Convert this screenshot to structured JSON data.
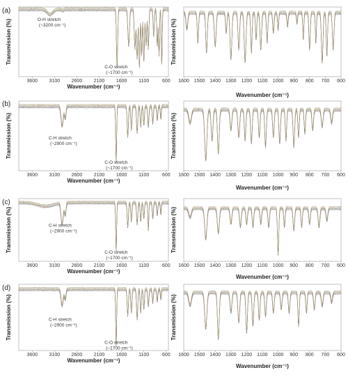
{
  "chart_data": [
    {
      "type": "line",
      "panel": "(a)",
      "side": "left",
      "xlabel": "Wavenumber (cm⁻¹)",
      "ylabel": "Transmission (%)",
      "xlim": [
        3900,
        550
      ],
      "ylim": [
        0,
        100
      ],
      "x_reversed": true,
      "xticks": [
        "3600",
        "3100",
        "2600",
        "2100",
        "1600",
        "1100",
        "600"
      ],
      "xtick_values": [
        3600,
        3100,
        2600,
        2100,
        1600,
        1100,
        600
      ],
      "annotations": [
        {
          "text1": "O-H stretch",
          "text2": "(~3200 cm⁻¹)",
          "x": 3200,
          "y": 80
        },
        {
          "text1": "C-O stretch",
          "text2": "(~1700 cm⁻¹)",
          "x": 1700,
          "y": 12
        }
      ],
      "baseline": 97,
      "features": [
        [
          3200,
          8,
          90
        ],
        [
          2920,
          2,
          30
        ],
        [
          1700,
          88,
          20
        ],
        [
          1440,
          55,
          25
        ],
        [
          1300,
          60,
          22
        ],
        [
          1250,
          75,
          20
        ],
        [
          1200,
          88,
          18
        ],
        [
          1150,
          70,
          18
        ],
        [
          1100,
          80,
          18
        ],
        [
          1050,
          55,
          20
        ],
        [
          1000,
          60,
          18
        ],
        [
          880,
          40,
          18
        ],
        [
          800,
          55,
          18
        ],
        [
          760,
          70,
          15
        ],
        [
          700,
          85,
          15
        ]
      ]
    },
    {
      "type": "line",
      "panel": "(a)",
      "side": "right",
      "xlabel": "Wavenumber (cm⁻¹)",
      "ylabel": "Transmission (%)",
      "xlim": [
        1600,
        600
      ],
      "ylim": [
        0,
        100
      ],
      "x_reversed": true,
      "xticks": [
        "1600",
        "1500",
        "1400",
        "1300",
        "1200",
        "1100",
        "1000",
        "900",
        "800",
        "700",
        "600"
      ],
      "xtick_values": [
        1600,
        1500,
        1400,
        1300,
        1200,
        1100,
        1000,
        900,
        800,
        700,
        600
      ],
      "baseline": 92,
      "features": [
        [
          1580,
          25,
          8
        ],
        [
          1510,
          45,
          6
        ],
        [
          1455,
          60,
          7
        ],
        [
          1400,
          50,
          8
        ],
        [
          1330,
          30,
          6
        ],
        [
          1300,
          70,
          8
        ],
        [
          1250,
          55,
          7
        ],
        [
          1210,
          75,
          8
        ],
        [
          1170,
          60,
          6
        ],
        [
          1140,
          40,
          6
        ],
        [
          1110,
          55,
          7
        ],
        [
          1070,
          45,
          6
        ],
        [
          1030,
          30,
          6
        ],
        [
          1000,
          25,
          5
        ],
        [
          940,
          20,
          6
        ],
        [
          880,
          15,
          5
        ],
        [
          840,
          40,
          5
        ],
        [
          800,
          55,
          6
        ],
        [
          760,
          45,
          5
        ],
        [
          720,
          75,
          7
        ],
        [
          690,
          65,
          6
        ],
        [
          650,
          55,
          7
        ]
      ]
    },
    {
      "type": "line",
      "panel": "(b)",
      "side": "left",
      "xlabel": "Wavenumber (cm⁻¹)",
      "ylabel": "Transmission (%)",
      "xlim": [
        3900,
        550
      ],
      "ylim": [
        0,
        100
      ],
      "x_reversed": true,
      "xticks": [
        "3600",
        "3100",
        "2600",
        "2100",
        "1600",
        "1100",
        "600"
      ],
      "xtick_values": [
        3600,
        3100,
        2600,
        2100,
        1600,
        1100,
        600
      ],
      "annotations": [
        {
          "text1": "C-H stretch",
          "text2": "(~2900 cm⁻¹)",
          "x": 2950,
          "y": 45
        },
        {
          "text1": "C-O stretch",
          "text2": "(~1700 cm⁻¹)",
          "x": 1700,
          "y": 10
        }
      ],
      "baseline": 93,
      "features": [
        [
          2930,
          30,
          35
        ],
        [
          2860,
          18,
          25
        ],
        [
          1720,
          85,
          15
        ],
        [
          1460,
          45,
          20
        ],
        [
          1380,
          35,
          18
        ],
        [
          1250,
          40,
          20
        ],
        [
          1170,
          30,
          18
        ],
        [
          1100,
          28,
          18
        ],
        [
          1000,
          30,
          20
        ],
        [
          900,
          25,
          18
        ],
        [
          800,
          20,
          18
        ],
        [
          720,
          18,
          15
        ]
      ]
    },
    {
      "type": "line",
      "panel": "(b)",
      "side": "right",
      "xlabel": "Wavenumber (cm⁻¹)",
      "ylabel": "Transmission (%)",
      "xlim": [
        1600,
        600
      ],
      "ylim": [
        0,
        100
      ],
      "x_reversed": true,
      "xticks": [
        "1600",
        "1500",
        "1400",
        "1300",
        "1200",
        "1100",
        "1000",
        "900",
        "800",
        "700",
        "600"
      ],
      "xtick_values": [
        1600,
        1500,
        1400,
        1300,
        1200,
        1100,
        1000,
        900,
        800,
        700,
        600
      ],
      "baseline": 88,
      "features": [
        [
          1560,
          20,
          12
        ],
        [
          1460,
          75,
          10
        ],
        [
          1420,
          45,
          8
        ],
        [
          1380,
          65,
          8
        ],
        [
          1300,
          30,
          8
        ],
        [
          1250,
          40,
          8
        ],
        [
          1210,
          45,
          7
        ],
        [
          1170,
          50,
          7
        ],
        [
          1120,
          40,
          7
        ],
        [
          1080,
          55,
          7
        ],
        [
          1030,
          40,
          7
        ],
        [
          990,
          50,
          7
        ],
        [
          950,
          45,
          6
        ],
        [
          900,
          55,
          7
        ],
        [
          870,
          40,
          6
        ],
        [
          830,
          35,
          6
        ],
        [
          780,
          30,
          7
        ],
        [
          720,
          25,
          8
        ],
        [
          660,
          20,
          8
        ]
      ]
    },
    {
      "type": "line",
      "panel": "(c)",
      "side": "left",
      "xlabel": "Wavenumber (cm⁻¹)",
      "ylabel": "Transmission (%)",
      "xlim": [
        3900,
        550
      ],
      "ylim": [
        0,
        100
      ],
      "x_reversed": true,
      "xticks": [
        "3600",
        "3100",
        "2600",
        "2100",
        "1600",
        "1100",
        "600"
      ],
      "xtick_values": [
        3600,
        3100,
        2600,
        2100,
        1600,
        1100,
        600
      ],
      "annotations": [
        {
          "text1": "C-H stretch",
          "text2": "(~2900 cm⁻¹)",
          "x": 2950,
          "y": 55
        },
        {
          "text1": "C-O stretch",
          "text2": "(~1700 cm⁻¹)",
          "x": 1700,
          "y": 12
        }
      ],
      "baseline": 94,
      "features": [
        [
          3300,
          6,
          250
        ],
        [
          2930,
          35,
          35
        ],
        [
          2860,
          20,
          25
        ],
        [
          1720,
          80,
          15
        ],
        [
          1460,
          40,
          20
        ],
        [
          1380,
          30,
          18
        ],
        [
          1250,
          35,
          20
        ],
        [
          1170,
          30,
          18
        ],
        [
          1100,
          25,
          18
        ],
        [
          1000,
          45,
          15
        ],
        [
          900,
          25,
          18
        ],
        [
          800,
          20,
          18
        ],
        [
          720,
          18,
          15
        ]
      ]
    },
    {
      "type": "line",
      "panel": "(c)",
      "side": "right",
      "xlabel": "Wavenumber (cm⁻¹)",
      "ylabel": "Transmission (%)",
      "xlim": [
        1600,
        600
      ],
      "ylim": [
        0,
        100
      ],
      "x_reversed": true,
      "xticks": [
        "1600",
        "1500",
        "1400",
        "1300",
        "1200",
        "1100",
        "1000",
        "900",
        "800",
        "700",
        "600"
      ],
      "xtick_values": [
        1600,
        1500,
        1400,
        1300,
        1200,
        1100,
        1000,
        900,
        800,
        700,
        600
      ],
      "baseline": 85,
      "features": [
        [
          1560,
          15,
          12
        ],
        [
          1460,
          50,
          10
        ],
        [
          1380,
          40,
          9
        ],
        [
          1300,
          25,
          8
        ],
        [
          1240,
          30,
          8
        ],
        [
          1200,
          25,
          7
        ],
        [
          1160,
          30,
          7
        ],
        [
          1110,
          25,
          7
        ],
        [
          1060,
          30,
          7
        ],
        [
          1000,
          75,
          6
        ],
        [
          960,
          30,
          6
        ],
        [
          900,
          35,
          7
        ],
        [
          850,
          30,
          6
        ],
        [
          800,
          25,
          7
        ],
        [
          740,
          30,
          8
        ],
        [
          690,
          20,
          8
        ]
      ]
    },
    {
      "type": "line",
      "panel": "(d)",
      "side": "left",
      "xlabel": "Wavenumber (cm⁻¹)",
      "ylabel": "Transmission (%)",
      "xlim": [
        3900,
        550
      ],
      "ylim": [
        0,
        100
      ],
      "x_reversed": true,
      "xticks": [
        "3600",
        "3100",
        "2600",
        "2100",
        "1600",
        "1100",
        "600"
      ],
      "xtick_values": [
        3600,
        3100,
        2600,
        2100,
        1600,
        1100,
        600
      ],
      "annotations": [
        {
          "text1": "C-H stretch",
          "text2": "(~2900 cm⁻¹)",
          "x": 2950,
          "y": 45
        },
        {
          "text1": "C-O stretch",
          "text2": "(~1700 cm⁻¹)",
          "x": 1700,
          "y": 10
        }
      ],
      "baseline": 93,
      "features": [
        [
          2930,
          25,
          35
        ],
        [
          2860,
          15,
          25
        ],
        [
          1720,
          88,
          15
        ],
        [
          1460,
          40,
          20
        ],
        [
          1380,
          35,
          18
        ],
        [
          1250,
          45,
          20
        ],
        [
          1170,
          35,
          18
        ],
        [
          1100,
          30,
          18
        ],
        [
          1000,
          25,
          20
        ],
        [
          900,
          20,
          18
        ],
        [
          800,
          18,
          18
        ],
        [
          720,
          15,
          15
        ]
      ]
    },
    {
      "type": "line",
      "panel": "(d)",
      "side": "right",
      "xlabel": "Wavenumber (cm⁻¹)",
      "ylabel": "Transmission (%)",
      "xlim": [
        1600,
        600
      ],
      "ylim": [
        0,
        100
      ],
      "x_reversed": true,
      "xticks": [
        "1600",
        "1500",
        "1400",
        "1300",
        "1200",
        "1100",
        "1000",
        "900",
        "800",
        "700",
        "600"
      ],
      "xtick_values": [
        1600,
        1500,
        1400,
        1300,
        1200,
        1100,
        1000,
        900,
        800,
        700,
        600
      ],
      "baseline": 88,
      "features": [
        [
          1560,
          20,
          12
        ],
        [
          1460,
          55,
          10
        ],
        [
          1380,
          70,
          8
        ],
        [
          1300,
          30,
          8
        ],
        [
          1250,
          45,
          8
        ],
        [
          1200,
          60,
          7
        ],
        [
          1160,
          50,
          7
        ],
        [
          1120,
          40,
          7
        ],
        [
          1080,
          35,
          7
        ],
        [
          1030,
          30,
          7
        ],
        [
          980,
          25,
          7
        ],
        [
          930,
          30,
          7
        ],
        [
          870,
          50,
          6
        ],
        [
          820,
          30,
          6
        ],
        [
          770,
          25,
          7
        ],
        [
          720,
          20,
          8
        ],
        [
          660,
          15,
          8
        ]
      ]
    }
  ],
  "series_colors": [
    "#4e79a7",
    "#e15759",
    "#59a14f",
    "#9c755f",
    "#76b7b2",
    "#b07aa1",
    "#edc948",
    "#7f7f7f"
  ]
}
